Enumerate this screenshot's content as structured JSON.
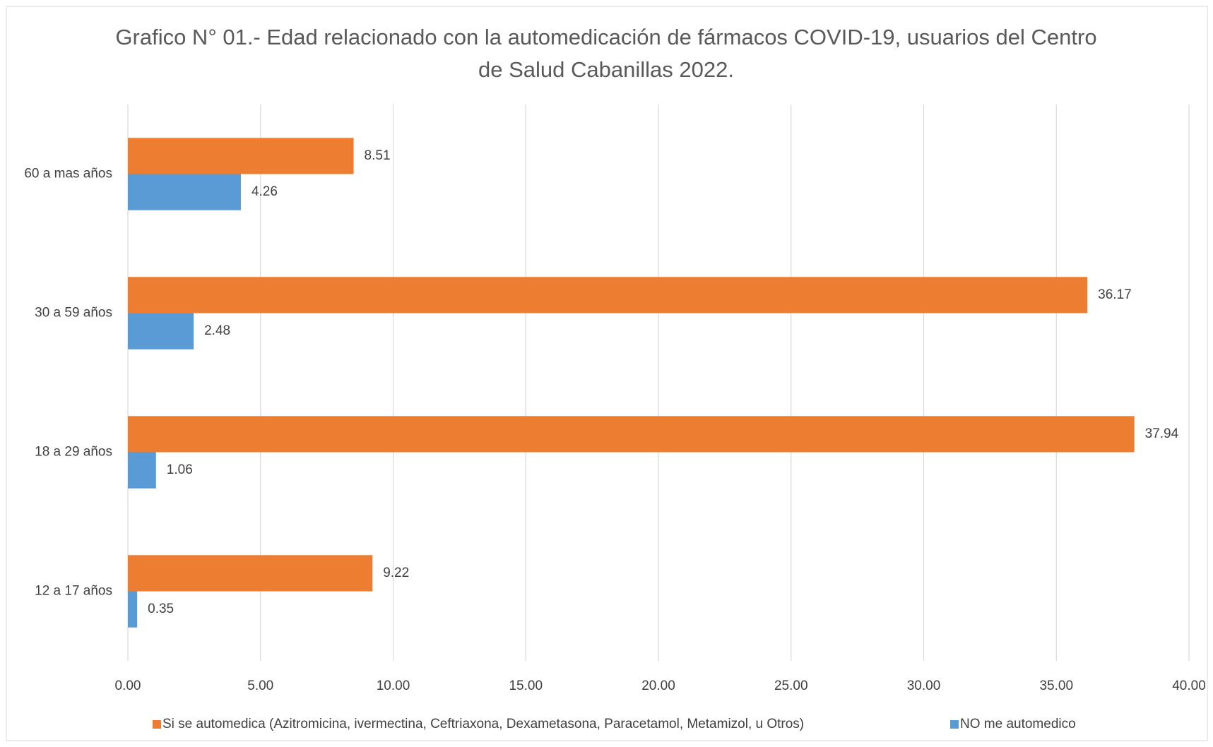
{
  "chart_data": {
    "type": "bar",
    "orientation": "horizontal",
    "title": "Grafico N° 01.- Edad relacionado con la automedicación de fármacos COVID-19, usuarios del Centro de Salud Cabanillas 2022.",
    "categories": [
      "12 a 17 años",
      "18 a 29 años",
      "30 a 59 años",
      "60 a mas años"
    ],
    "series": [
      {
        "name": "Si se automedica (Azitromicina, ivermectina, Ceftriaxona, Dexametasona, Paracetamol, Metamizol, u Otros)",
        "color": "#ed7d31",
        "values": [
          9.22,
          37.94,
          36.17,
          8.51
        ]
      },
      {
        "name": "NO me automedico",
        "color": "#5b9bd5",
        "values": [
          0.35,
          1.06,
          2.48,
          4.26
        ]
      }
    ],
    "xlim": [
      0,
      40
    ],
    "xticks": [
      {
        "value": 0,
        "label": "0.00"
      },
      {
        "value": 5,
        "label": "5.00"
      },
      {
        "value": 10,
        "label": "10.00"
      },
      {
        "value": 15,
        "label": "15.00"
      },
      {
        "value": 20,
        "label": "20.00"
      },
      {
        "value": 25,
        "label": "25.00"
      },
      {
        "value": 30,
        "label": "30.00"
      },
      {
        "value": 35,
        "label": "35.00"
      },
      {
        "value": 40,
        "label": "40.00"
      }
    ],
    "grid": true,
    "legend": "bottom"
  }
}
